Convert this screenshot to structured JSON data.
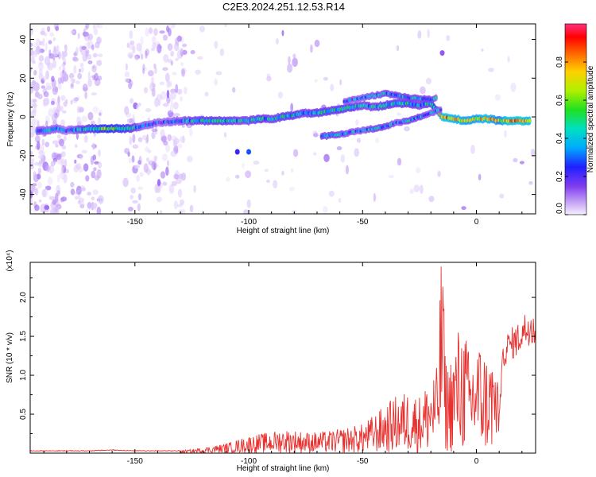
{
  "chart_data": [
    {
      "type": "heatmap",
      "title": "C2E3.2024.251.12.53.R14",
      "xlabel": "Height of straight line (km)",
      "ylabel": "Frequency (Hz)",
      "xlim": [
        -196,
        26
      ],
      "ylim": [
        -50,
        48
      ],
      "x_ticks": [
        -150,
        -100,
        -50,
        0
      ],
      "y_ticks": [
        -40,
        -20,
        0,
        20,
        40
      ],
      "colorbar": {
        "label": "Normalized spectral amplitude",
        "ticks": [
          "0.0",
          "0.2",
          "0.4",
          "0.6",
          "0.8"
        ],
        "range": [
          0,
          1
        ]
      },
      "main_trace": [
        [
          -193,
          -7,
          0.3
        ],
        [
          -188,
          -7,
          0.3
        ],
        [
          -185,
          -6,
          0.3
        ],
        [
          -180,
          -7,
          0.25
        ],
        [
          -168,
          -6,
          0.45
        ],
        [
          -163,
          -6,
          0.55
        ],
        [
          -158,
          -6,
          0.5
        ],
        [
          -153,
          -6,
          0.45
        ],
        [
          -148,
          -5,
          0.3
        ],
        [
          -140,
          -3,
          0.25
        ],
        [
          -130,
          -2,
          0.3
        ],
        [
          -125,
          -2,
          0.35
        ],
        [
          -120,
          -2,
          0.4
        ],
        [
          -115,
          -2,
          0.4
        ],
        [
          -110,
          -2,
          0.4
        ],
        [
          -105,
          -2,
          0.35
        ],
        [
          -100,
          -2,
          0.35
        ],
        [
          -95,
          -1,
          0.4
        ],
        [
          -90,
          -1,
          0.35
        ],
        [
          -85,
          0,
          0.4
        ],
        [
          -80,
          1,
          0.4
        ],
        [
          -75,
          2,
          0.35
        ],
        [
          -70,
          2,
          0.4
        ],
        [
          -65,
          3,
          0.4
        ],
        [
          -60,
          4,
          0.4
        ],
        [
          -55,
          5,
          0.4
        ],
        [
          -50,
          6,
          0.35
        ],
        [
          -45,
          5,
          0.35
        ],
        [
          -40,
          6,
          0.4
        ],
        [
          -35,
          7,
          0.4
        ],
        [
          -30,
          7,
          0.4
        ],
        [
          -25,
          6,
          0.35
        ],
        [
          -20,
          7,
          0.4
        ],
        [
          -15,
          0,
          0.8
        ],
        [
          -10,
          -1,
          0.75
        ],
        [
          -5,
          -2,
          0.7
        ],
        [
          0,
          -1,
          0.7
        ],
        [
          5,
          -1,
          0.75
        ],
        [
          10,
          -2,
          0.65
        ],
        [
          15,
          -2,
          0.8
        ],
        [
          20,
          -2,
          0.8
        ],
        [
          24,
          -2,
          0.75
        ]
      ],
      "secondary_trace": [
        [
          -68,
          -10,
          0.35
        ],
        [
          -60,
          -9,
          0.35
        ],
        [
          -55,
          -8,
          0.3
        ],
        [
          -50,
          -7,
          0.3
        ],
        [
          -45,
          -6,
          0.35
        ],
        [
          -40,
          -5,
          0.35
        ],
        [
          -35,
          -3,
          0.3
        ],
        [
          -30,
          -2,
          0.35
        ],
        [
          -25,
          0,
          0.35
        ],
        [
          -20,
          2,
          0.3
        ],
        [
          -15,
          4,
          0.3
        ]
      ],
      "upper_branch": [
        [
          -58,
          8,
          0.3
        ],
        [
          -50,
          10,
          0.3
        ],
        [
          -40,
          12,
          0.35
        ],
        [
          -30,
          10,
          0.35
        ],
        [
          -20,
          9,
          0.35
        ],
        [
          -17,
          10,
          0.3
        ]
      ],
      "isolated_points": [
        [
          -105,
          -18,
          0.25
        ],
        [
          -100,
          -18,
          0.3
        ],
        [
          -15,
          33,
          0.15
        ]
      ]
    },
    {
      "type": "line",
      "xlabel": "Height of straight line (km)",
      "ylabel": "SNR (10 * v/v)",
      "y_multiplier": "(x10⁴)",
      "xlim": [
        -196,
        26
      ],
      "ylim": [
        0,
        2.45
      ],
      "x_ticks": [
        -150,
        -100,
        -50,
        0
      ],
      "y_ticks": [
        0.5,
        1.0,
        1.5,
        2.0
      ],
      "y_tick_labels": [
        "0.5",
        "1.0",
        "1.5",
        "2.0"
      ],
      "series": [
        {
          "color": "#e8302e",
          "x": [
            -196,
            -190,
            -180,
            -170,
            -160,
            -150,
            -145,
            -140,
            -130,
            -125,
            -120,
            -115,
            -110,
            -105,
            -100,
            -95,
            -90,
            -85,
            -80,
            -75,
            -70,
            -65,
            -60,
            -55,
            -50,
            -45,
            -40,
            -35,
            -30,
            -25,
            -20,
            -17,
            -15,
            -14,
            -13,
            -10,
            -8,
            -5,
            -3,
            0,
            3,
            5,
            8,
            10,
            12,
            15,
            18,
            20,
            22,
            24,
            26
          ],
          "values": [
            0.03,
            0.03,
            0.03,
            0.03,
            0.04,
            0.03,
            0.03,
            0.03,
            0.03,
            0.04,
            0.06,
            0.08,
            0.1,
            0.14,
            0.18,
            0.2,
            0.22,
            0.25,
            0.24,
            0.22,
            0.22,
            0.23,
            0.25,
            0.28,
            0.3,
            0.4,
            0.5,
            0.6,
            0.65,
            0.6,
            0.8,
            0.9,
            2.45,
            1.2,
            0.9,
            1.1,
            1.3,
            1.3,
            1.0,
            1.2,
            1.1,
            1.0,
            1.05,
            0.55,
            1.3,
            1.4,
            1.45,
            1.55,
            1.6,
            1.65,
            1.6
          ]
        }
      ]
    }
  ]
}
